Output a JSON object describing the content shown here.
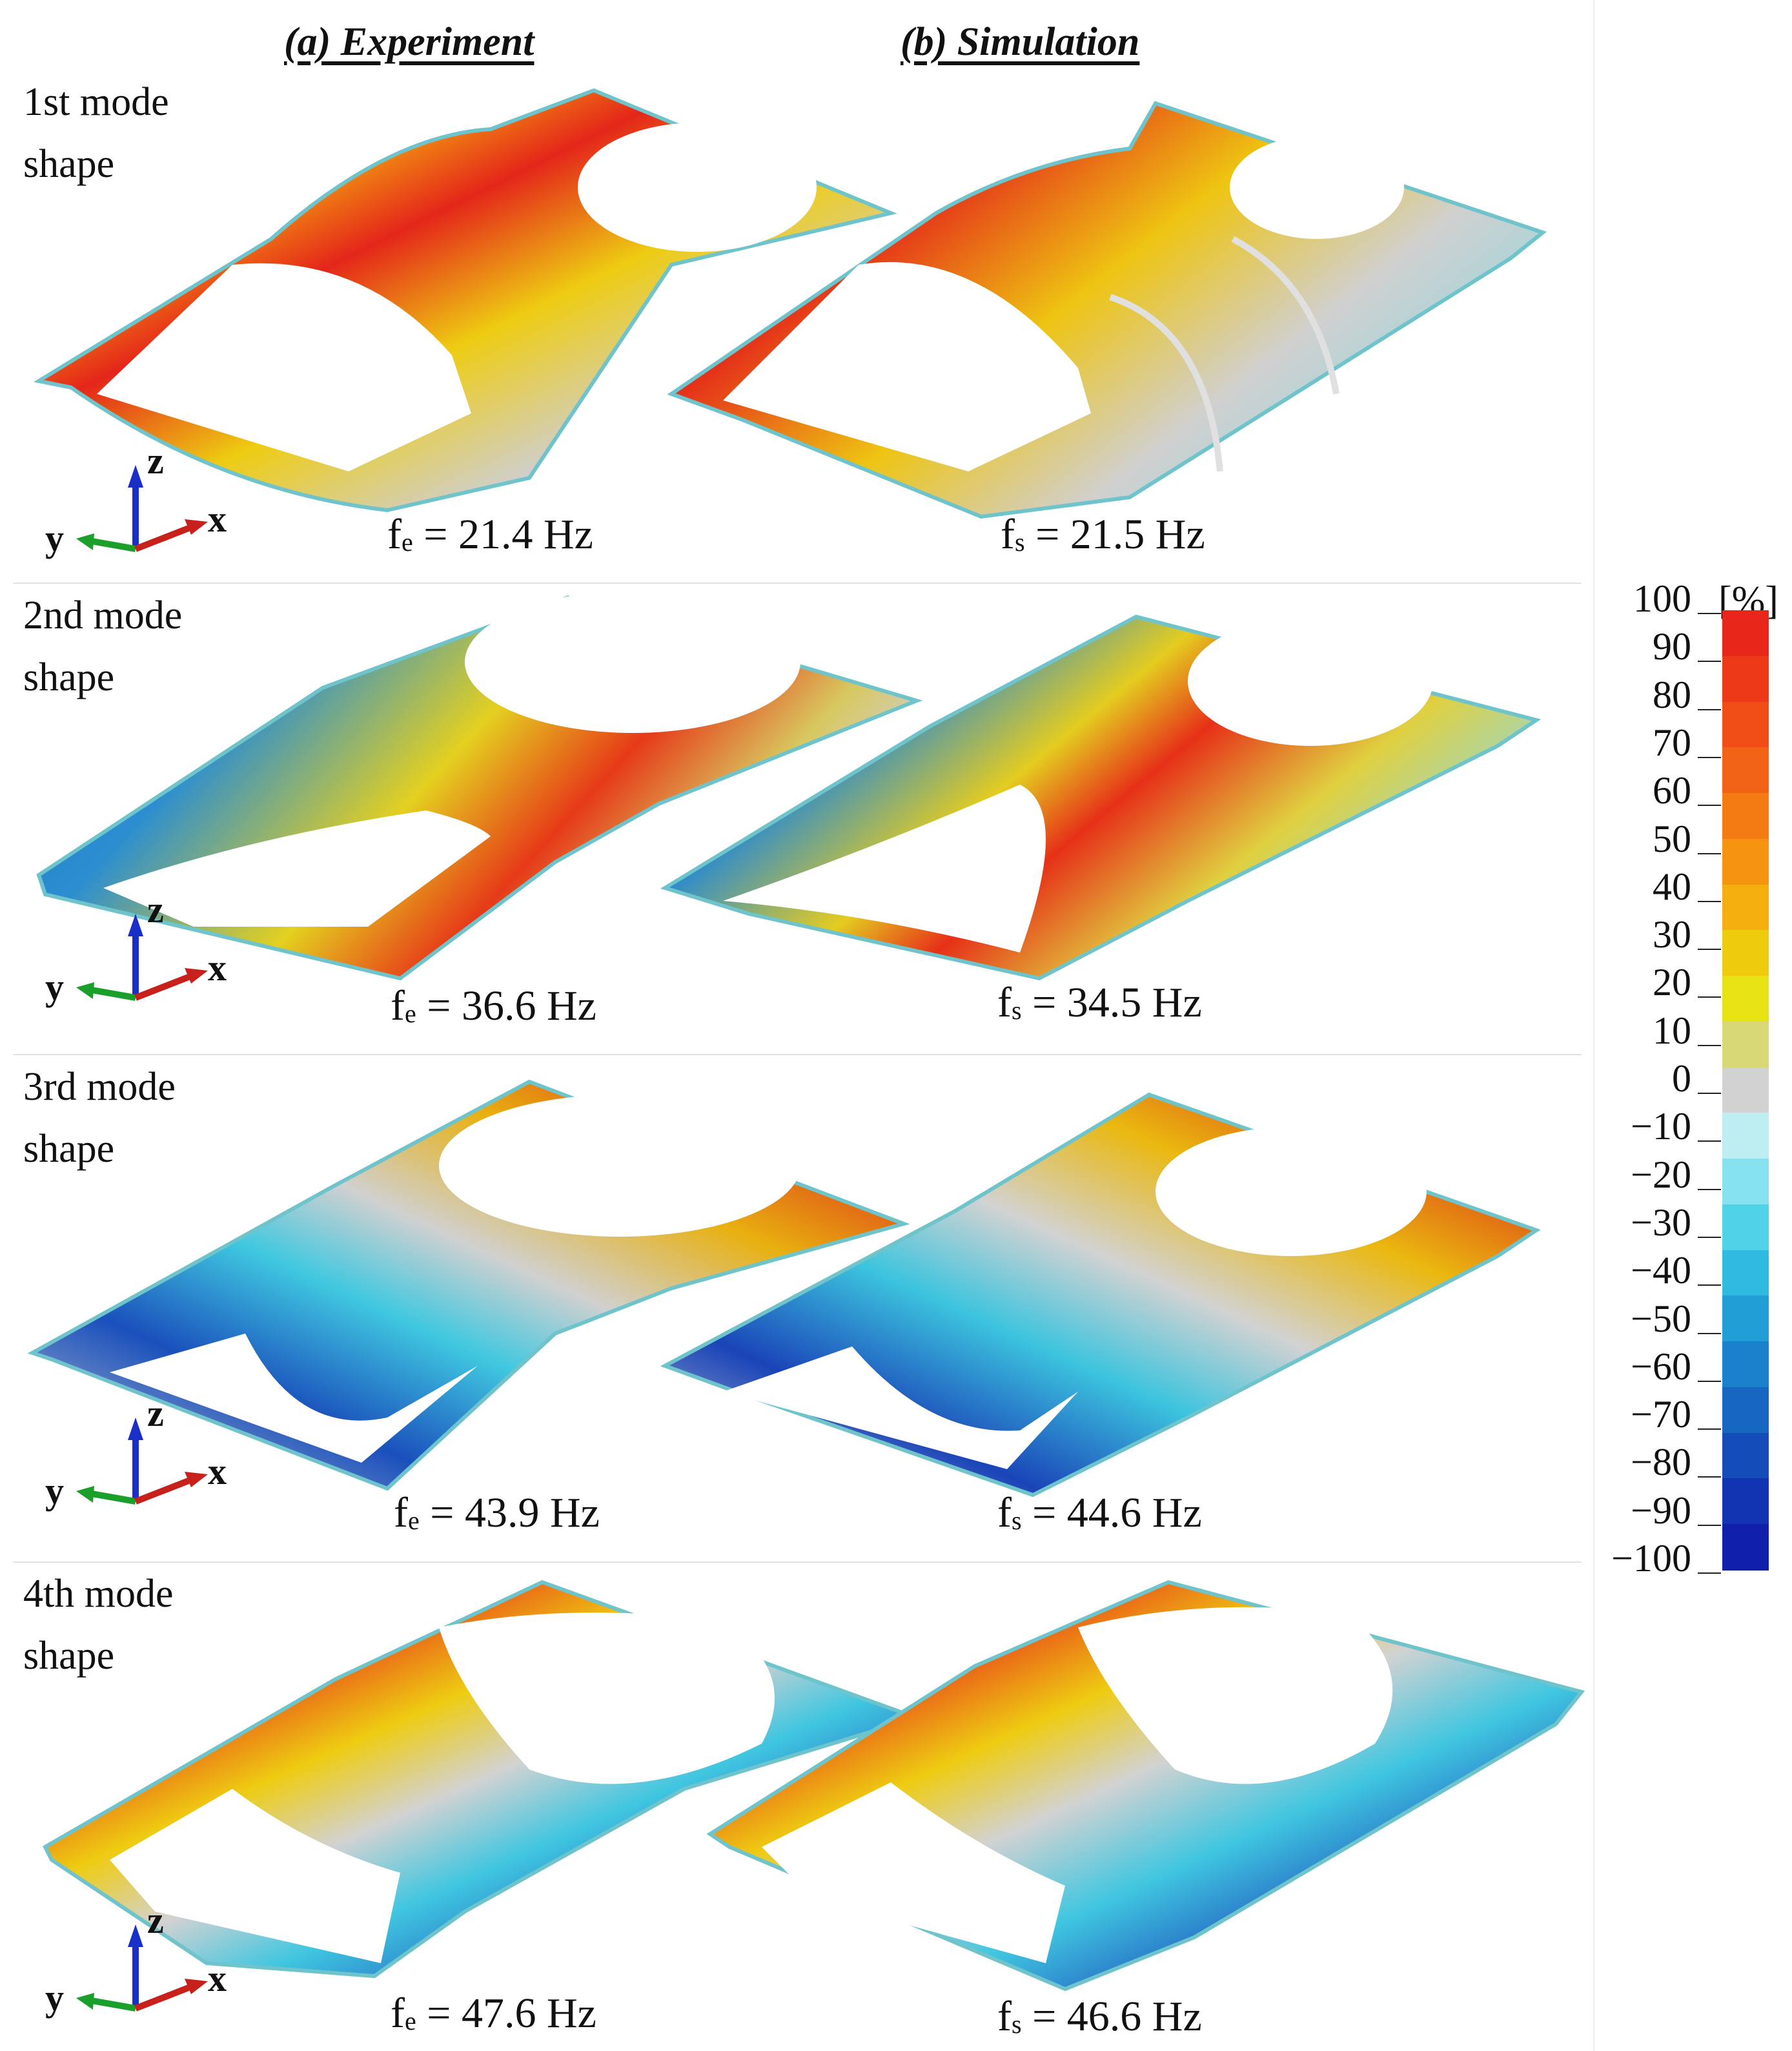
{
  "headers": {
    "experiment": "(a) Experiment",
    "simulation": "(b) Simulation"
  },
  "axis_triad": {
    "z": "z",
    "y": "y",
    "x": "x"
  },
  "modes": [
    {
      "label_line1": "1st mode",
      "label_line2": "shape",
      "exp_prefix": "f",
      "exp_sub": "e",
      "exp_value": "= 21.4 Hz",
      "sim_prefix": "f",
      "sim_sub": "s",
      "sim_value": "= 21.5 Hz"
    },
    {
      "label_line1": "2nd mode",
      "label_line2": "shape",
      "exp_prefix": "f",
      "exp_sub": "e",
      "exp_value": "= 36.6 Hz",
      "sim_prefix": "f",
      "sim_sub": "s",
      "sim_value": "= 34.5 Hz"
    },
    {
      "label_line1": "3rd mode",
      "label_line2": "shape",
      "exp_prefix": "f",
      "exp_sub": "e",
      "exp_value": "= 43.9 Hz",
      "sim_prefix": "f",
      "sim_sub": "s",
      "sim_value": "= 44.6 Hz"
    },
    {
      "label_line1": "4th mode",
      "label_line2": "shape",
      "exp_prefix": "f",
      "exp_sub": "e",
      "exp_value": "= 47.6 Hz",
      "sim_prefix": "f",
      "sim_sub": "s",
      "sim_value": "= 46.6 Hz"
    }
  ],
  "colorbar": {
    "unit": "[%]",
    "ticks": [
      "100",
      "90",
      "80",
      "70",
      "60",
      "50",
      "40",
      "30",
      "20",
      "10",
      "0",
      "−10",
      "−20",
      "−30",
      "−40",
      "−50",
      "−60",
      "−70",
      "−80",
      "−90",
      "−100"
    ],
    "colors": [
      "#e8271a",
      "#ec3a18",
      "#f04e16",
      "#f26214",
      "#f47a12",
      "#f69410",
      "#f4ae0e",
      "#eecb0c",
      "#e6e214",
      "#d9d876",
      "#d2d2d2",
      "#bfeef2",
      "#86e2ee",
      "#4fd3e6",
      "#2ebbdf",
      "#1f9fd6",
      "#1a82cc",
      "#1766c2",
      "#144cba",
      "#1233b2",
      "#1020ac"
    ]
  }
}
